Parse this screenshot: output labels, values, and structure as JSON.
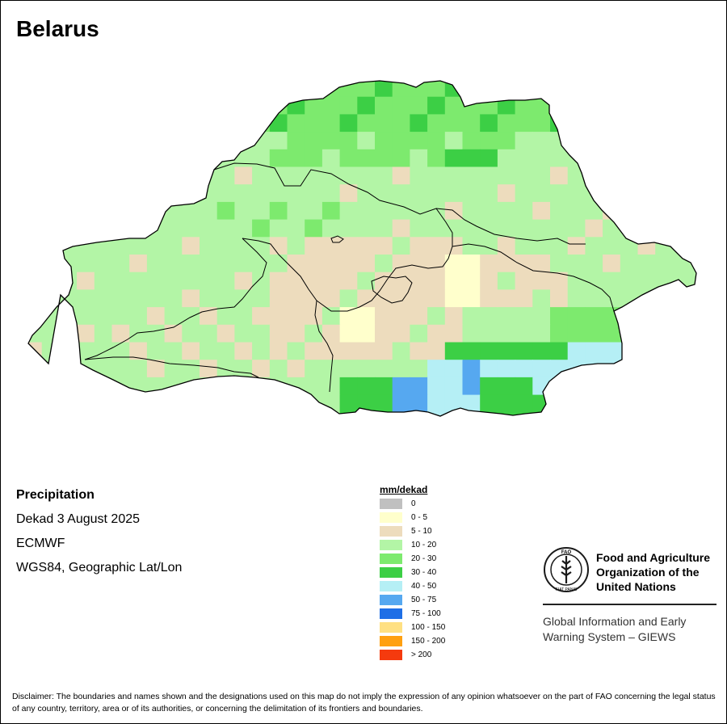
{
  "title": "Belarus",
  "info": {
    "variable": "Precipitation",
    "period": "Dekad 3 August 2025",
    "source": "ECMWF",
    "projection": "WGS84, Geographic Lat/Lon"
  },
  "legend": {
    "title": "mm/dekad",
    "items": [
      {
        "label": "0",
        "color": "#c0c0c0"
      },
      {
        "label": "0 - 5",
        "color": "#ffffcc"
      },
      {
        "label": "5 - 10",
        "color": "#eddcbd"
      },
      {
        "label": "10 - 20",
        "color": "#b3f5a6"
      },
      {
        "label": "20 - 30",
        "color": "#7dea6e"
      },
      {
        "label": "30 - 40",
        "color": "#3ccf45"
      },
      {
        "label": "40 - 50",
        "color": "#b5eff5"
      },
      {
        "label": "50 - 75",
        "color": "#56a8f0"
      },
      {
        "label": "75 - 100",
        "color": "#1f6fe6"
      },
      {
        "label": "100 - 150",
        "color": "#ffe082"
      },
      {
        "label": "150 - 200",
        "color": "#ffa010"
      },
      {
        "label": "> 200",
        "color": "#f53a0e"
      }
    ]
  },
  "organization": {
    "logo_text": "FAO",
    "logo_ring": "FIAT PANIS",
    "name_lines": [
      "Food and Agriculture",
      "Organization of the",
      "United Nations"
    ],
    "system_lines": [
      "Global Information and Early",
      "Warning System – GIEWS"
    ]
  },
  "disclaimer": "Disclaimer: The boundaries and names shown and the designations used on this map do not imply the expression of any opinion whatsoever on the part of FAO concerning the legal status of any country, territory, area or of its authorities, or concerning the delimitation of its frontiers and boundaries."
}
